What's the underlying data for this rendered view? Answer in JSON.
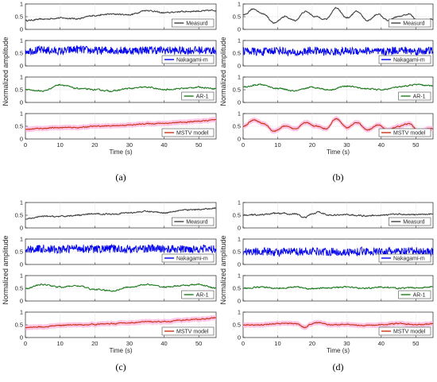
{
  "common": {
    "ylabel": "Normalized amplitude",
    "xlabel": "Time (s)",
    "xticks": [
      "0",
      "10",
      "20",
      "30",
      "40",
      "50"
    ],
    "yticks": [
      "0",
      "0.5",
      "1"
    ],
    "xlim": [
      0,
      55
    ],
    "ylim": [
      0,
      1
    ]
  },
  "colors": {
    "Measurd": "#404040",
    "Nakagami-m": "#0000ee",
    "AR-1": "#1f7a1f",
    "MSTV model": "#c83214",
    "MSTV model band": "#ffb0dc"
  },
  "chart_data": [
    {
      "type": "line",
      "panel": "(a)",
      "series": [
        {
          "name": "Measurd",
          "x": [
            0,
            5,
            10,
            15,
            20,
            25,
            30,
            35,
            40,
            45,
            50,
            55
          ],
          "values": [
            0.35,
            0.4,
            0.45,
            0.42,
            0.55,
            0.6,
            0.58,
            0.75,
            0.65,
            0.7,
            0.72,
            0.75
          ]
        },
        {
          "name": "Nakagami-m",
          "x": [
            0,
            5,
            10,
            15,
            20,
            25,
            30,
            35,
            40,
            45,
            50,
            55
          ],
          "values": [
            0.6,
            0.62,
            0.58,
            0.65,
            0.6,
            0.62,
            0.6,
            0.63,
            0.61,
            0.6,
            0.62,
            0.6
          ]
        },
        {
          "name": "AR-1",
          "x": [
            0,
            5,
            10,
            15,
            20,
            25,
            30,
            35,
            40,
            45,
            50,
            55
          ],
          "values": [
            0.5,
            0.45,
            0.7,
            0.55,
            0.5,
            0.45,
            0.55,
            0.6,
            0.5,
            0.55,
            0.6,
            0.55
          ]
        },
        {
          "name": "MSTV model",
          "x": [
            0,
            5,
            10,
            15,
            20,
            25,
            30,
            35,
            40,
            45,
            50,
            55
          ],
          "values": [
            0.38,
            0.42,
            0.45,
            0.45,
            0.5,
            0.52,
            0.55,
            0.6,
            0.62,
            0.65,
            0.7,
            0.75
          ]
        }
      ]
    },
    {
      "type": "line",
      "panel": "(b)",
      "series": [
        {
          "name": "Measurd",
          "x": [
            0,
            3,
            6,
            9,
            12,
            15,
            18,
            21,
            24,
            27,
            30,
            33,
            36,
            39,
            42,
            45,
            48,
            51,
            54
          ],
          "values": [
            0.55,
            0.8,
            0.6,
            0.25,
            0.5,
            0.35,
            0.7,
            0.5,
            0.4,
            0.85,
            0.45,
            0.7,
            0.35,
            0.6,
            0.35,
            0.5,
            0.6,
            0.3,
            0.4
          ]
        },
        {
          "name": "Nakagami-m",
          "x": [
            0,
            5,
            10,
            15,
            20,
            25,
            30,
            35,
            40,
            45,
            50,
            55
          ],
          "values": [
            0.6,
            0.55,
            0.62,
            0.5,
            0.6,
            0.55,
            0.58,
            0.6,
            0.55,
            0.62,
            0.58,
            0.6
          ]
        },
        {
          "name": "AR-1",
          "x": [
            0,
            5,
            10,
            15,
            20,
            25,
            30,
            35,
            40,
            45,
            50,
            55
          ],
          "values": [
            0.6,
            0.7,
            0.55,
            0.45,
            0.6,
            0.5,
            0.65,
            0.55,
            0.5,
            0.6,
            0.7,
            0.65
          ]
        },
        {
          "name": "MSTV model",
          "x": [
            0,
            3,
            6,
            9,
            12,
            15,
            18,
            21,
            24,
            27,
            30,
            33,
            36,
            39,
            42,
            45,
            48,
            51,
            54
          ],
          "values": [
            0.5,
            0.75,
            0.6,
            0.3,
            0.5,
            0.4,
            0.65,
            0.5,
            0.4,
            0.8,
            0.45,
            0.65,
            0.35,
            0.55,
            0.35,
            0.5,
            0.6,
            0.3,
            0.4
          ]
        }
      ]
    },
    {
      "type": "line",
      "panel": "(c)",
      "series": [
        {
          "name": "Measurd",
          "x": [
            0,
            5,
            10,
            15,
            20,
            25,
            30,
            35,
            40,
            45,
            50,
            55
          ],
          "values": [
            0.35,
            0.45,
            0.45,
            0.5,
            0.55,
            0.55,
            0.6,
            0.65,
            0.6,
            0.7,
            0.72,
            0.78
          ]
        },
        {
          "name": "Nakagami-m",
          "x": [
            0,
            5,
            10,
            15,
            20,
            25,
            30,
            35,
            40,
            45,
            50,
            55
          ],
          "values": [
            0.6,
            0.62,
            0.58,
            0.65,
            0.6,
            0.62,
            0.6,
            0.63,
            0.61,
            0.6,
            0.62,
            0.6
          ]
        },
        {
          "name": "AR-1",
          "x": [
            0,
            5,
            10,
            15,
            20,
            25,
            30,
            35,
            40,
            45,
            50,
            55
          ],
          "values": [
            0.5,
            0.65,
            0.55,
            0.6,
            0.45,
            0.4,
            0.55,
            0.65,
            0.55,
            0.6,
            0.65,
            0.5
          ]
        },
        {
          "name": "MSTV model",
          "x": [
            0,
            5,
            10,
            15,
            20,
            25,
            30,
            35,
            40,
            45,
            50,
            55
          ],
          "values": [
            0.4,
            0.42,
            0.48,
            0.5,
            0.52,
            0.55,
            0.58,
            0.62,
            0.62,
            0.68,
            0.72,
            0.78
          ]
        }
      ]
    },
    {
      "type": "line",
      "panel": "(d)",
      "series": [
        {
          "name": "Measurd",
          "x": [
            0,
            5,
            10,
            15,
            18,
            20,
            22,
            25,
            30,
            35,
            40,
            45,
            50,
            55
          ],
          "values": [
            0.5,
            0.52,
            0.58,
            0.55,
            0.4,
            0.55,
            0.62,
            0.5,
            0.52,
            0.48,
            0.5,
            0.55,
            0.52,
            0.55
          ]
        },
        {
          "name": "Nakagami-m",
          "x": [
            0,
            5,
            10,
            15,
            20,
            25,
            30,
            35,
            40,
            45,
            50,
            55
          ],
          "values": [
            0.5,
            0.52,
            0.48,
            0.5,
            0.52,
            0.5,
            0.48,
            0.52,
            0.5,
            0.5,
            0.52,
            0.5
          ]
        },
        {
          "name": "AR-1",
          "x": [
            0,
            5,
            10,
            15,
            20,
            25,
            30,
            35,
            40,
            45,
            50,
            55
          ],
          "values": [
            0.5,
            0.55,
            0.5,
            0.55,
            0.48,
            0.52,
            0.55,
            0.5,
            0.55,
            0.5,
            0.52,
            0.55
          ]
        },
        {
          "name": "MSTV model",
          "x": [
            0,
            5,
            10,
            15,
            18,
            20,
            22,
            25,
            30,
            35,
            40,
            45,
            50,
            55
          ],
          "values": [
            0.5,
            0.5,
            0.55,
            0.55,
            0.4,
            0.55,
            0.6,
            0.5,
            0.52,
            0.48,
            0.5,
            0.55,
            0.5,
            0.55
          ]
        }
      ]
    }
  ]
}
